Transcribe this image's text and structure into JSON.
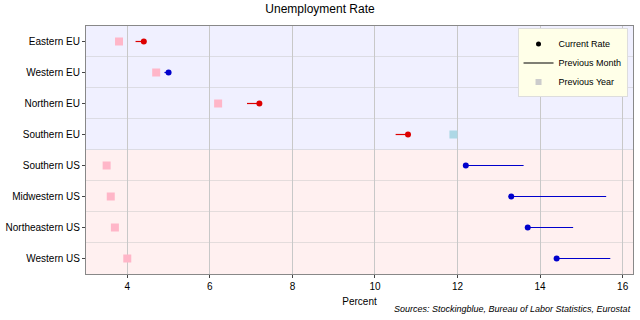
{
  "chart_data": {
    "type": "dot_range",
    "title": "Unemployment Rate",
    "x_label": "Percent",
    "annotations": [
      "Sources: Stockingblue, Bureau of Labor Statistics, Eurostat"
    ],
    "orientation": "horizontal",
    "categories": [
      "Eastern EU",
      "Western EU",
      "Northern EU",
      "Southern EU",
      "Southern US",
      "Midwestern US",
      "Northeastern US",
      "Western US"
    ],
    "series": [
      {
        "name": "Current Rate",
        "type": "scatter",
        "marker": "circle",
        "color": "#000000",
        "colors": [
          "#dd0000",
          "#0000cc",
          "#dd0000",
          "#dd0000",
          "#0000cc",
          "#0000cc",
          "#0000cc",
          "#0000cc"
        ],
        "values": [
          4.4,
          5.0,
          7.2,
          10.8,
          12.2,
          13.3,
          13.7,
          14.4
        ]
      },
      {
        "name": "Previous Month",
        "type": "line",
        "line_style": "solid",
        "color": "#000000",
        "colors": [
          "#dd0000",
          "#0000cc",
          "#dd0000",
          "#dd0000",
          "#0000cc",
          "#0000cc",
          "#0000cc",
          "#0000cc"
        ],
        "values": [
          4.2,
          4.9,
          6.9,
          10.5,
          13.6,
          15.6,
          14.8,
          15.7
        ]
      },
      {
        "name": "Previous Year",
        "type": "scatter",
        "marker": "square",
        "color": "#cccccc",
        "colors": [
          "#ffb6c8",
          "#ffb6c8",
          "#ffb6c8",
          "#add8e6",
          "#ffb6c8",
          "#ffb6c8",
          "#ffb6c8",
          "#ffb6c8"
        ],
        "values": [
          3.8,
          4.7,
          6.2,
          11.9,
          3.5,
          3.6,
          3.7,
          4.0
        ]
      }
    ],
    "xlim": [
      3,
      16.25
    ],
    "xticks": [
      4,
      6,
      8,
      10,
      12,
      14,
      16
    ],
    "grid": true,
    "legend": "top right"
  }
}
